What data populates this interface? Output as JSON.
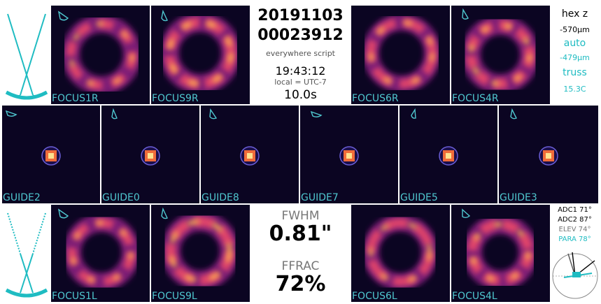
{
  "colors": {
    "accent": "#1fbcc2",
    "label": "#4fc7cf",
    "bg": "#0b0522"
  },
  "header": {
    "date": "20191103",
    "exposure_id": "00023912",
    "script": "everywhere script",
    "time": "19:43:12",
    "local": "local = UTC-7",
    "exptime": "10.0s"
  },
  "hex": {
    "title": "hex z",
    "hex_value": "-570μm",
    "auto_label": "auto",
    "auto_value": "-479μm",
    "truss_label": "truss",
    "truss_value": "15.3C"
  },
  "stats": {
    "fwhm_label": "FWHM",
    "fwhm_value": "0.81\"",
    "ffrac_label": "FFRAC",
    "ffrac_value": "72%"
  },
  "angles": {
    "adc1": "ADC1 71°",
    "adc2": "ADC2 87°",
    "elev": "ELEV 74°",
    "para": "PARA 78°"
  },
  "focus_top": [
    "FOCUS1R",
    "FOCUS9R",
    "FOCUS6R",
    "FOCUS4R"
  ],
  "guides": [
    "GUIDE2",
    "GUIDE0",
    "GUIDE8",
    "GUIDE7",
    "GUIDE5",
    "GUIDE3"
  ],
  "focus_bottom": [
    "FOCUS1L",
    "FOCUS9L",
    "FOCUS6L",
    "FOCUS4L"
  ]
}
